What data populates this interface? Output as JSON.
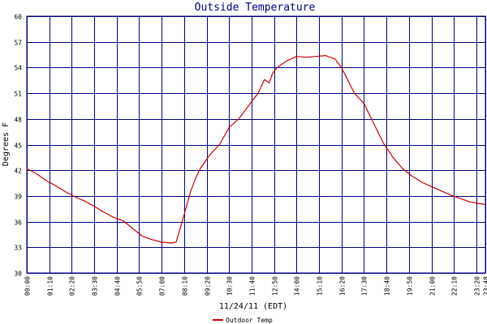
{
  "chart_data": {
    "type": "line",
    "title": "Outside Temperature",
    "xlabel": "11/24/11 (EDT)",
    "ylabel": "Degrees F",
    "ylim": [
      30,
      60
    ],
    "yticks": [
      30,
      33,
      36,
      39,
      42,
      45,
      48,
      51,
      54,
      57,
      60
    ],
    "xlim": [
      "00:00",
      "23:48"
    ],
    "xticks": [
      "00:00",
      "01:10",
      "02:20",
      "03:30",
      "04:40",
      "05:50",
      "07:00",
      "08:10",
      "09:20",
      "10:30",
      "11:40",
      "12:50",
      "14:00",
      "15:10",
      "16:20",
      "17:30",
      "18:40",
      "19:50",
      "21:00",
      "22:10",
      "23:20",
      "23:48"
    ],
    "grid": true,
    "legend": "bottom-left",
    "colors": {
      "line": "#cc0000",
      "grid": "#000080",
      "title": "#000080"
    },
    "series": [
      {
        "name": "Outdoor Temp",
        "x": [
          "00:00",
          "00:30",
          "01:00",
          "01:30",
          "02:00",
          "02:30",
          "03:00",
          "03:30",
          "04:00",
          "04:30",
          "05:00",
          "05:30",
          "06:00",
          "06:30",
          "07:00",
          "07:30",
          "07:45",
          "08:00",
          "08:15",
          "08:30",
          "08:45",
          "09:00",
          "09:30",
          "10:00",
          "10:30",
          "11:00",
          "11:30",
          "12:00",
          "12:20",
          "12:35",
          "12:45",
          "13:00",
          "13:30",
          "14:00",
          "14:30",
          "15:00",
          "15:30",
          "16:00",
          "16:20",
          "16:40",
          "17:00",
          "17:30",
          "18:00",
          "18:30",
          "19:00",
          "19:30",
          "20:00",
          "20:30",
          "21:00",
          "21:30",
          "22:00",
          "22:30",
          "23:00",
          "23:30",
          "23:48"
        ],
        "y": [
          42.2,
          41.6,
          40.8,
          40.2,
          39.5,
          38.9,
          38.4,
          37.8,
          37.1,
          36.5,
          36.1,
          35.2,
          34.3,
          33.9,
          33.6,
          33.5,
          33.6,
          35.5,
          37.5,
          39.5,
          41.0,
          42.2,
          43.8,
          45.0,
          47.0,
          48.0,
          49.5,
          51.0,
          52.6,
          52.2,
          53.3,
          54.0,
          54.8,
          55.3,
          55.2,
          55.3,
          55.4,
          55.0,
          54.0,
          52.5,
          51.0,
          49.8,
          47.5,
          45.2,
          43.5,
          42.2,
          41.3,
          40.6,
          40.1,
          39.6,
          39.1,
          38.7,
          38.3,
          38.1,
          38.0
        ]
      }
    ]
  }
}
